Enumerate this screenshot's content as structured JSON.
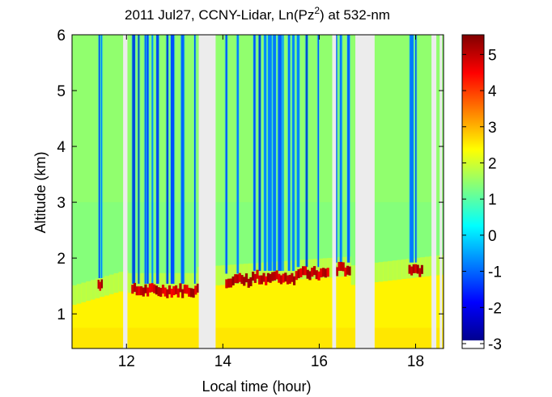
{
  "figure": {
    "title_main": "2011 Jul27, CCNY-Lidar, Ln(Pz",
    "title_sup": "2",
    "title_tail": ") at 532-nm"
  },
  "chart_data": {
    "type": "heatmap",
    "xlabel": "Local time (hour)",
    "ylabel": "Altitude (km)",
    "xlim": [
      10.87,
      18.58
    ],
    "ylim": [
      0.38,
      6.0
    ],
    "x_ticks": [
      12,
      14,
      16,
      18
    ],
    "y_ticks": [
      1,
      2,
      3,
      4,
      5,
      6
    ],
    "colorbar": {
      "range": [
        -3.0,
        5.5
      ],
      "ticks": [
        -3,
        -2,
        -1,
        0,
        1,
        2,
        3,
        4,
        5
      ],
      "colormap": "jet",
      "missing_color": "#ececec"
    },
    "data_gaps_hours": [
      [
        11.93,
        12.02
      ],
      [
        13.5,
        13.85
      ],
      [
        16.27,
        16.35
      ],
      [
        16.75,
        17.15
      ],
      [
        18.33,
        18.43
      ],
      [
        18.5,
        18.55
      ]
    ],
    "cloud_base_km": [
      {
        "start": 11.4,
        "end": 11.5,
        "height": 1.52
      },
      {
        "start": 12.1,
        "end": 13.5,
        "height": 1.42
      },
      {
        "start": 14.05,
        "end": 14.6,
        "height": 1.6
      },
      {
        "start": 14.6,
        "end": 15.5,
        "height": 1.65
      },
      {
        "start": 15.5,
        "end": 16.2,
        "height": 1.72
      },
      {
        "start": 16.3,
        "end": 16.65,
        "height": 1.8
      },
      {
        "start": 17.85,
        "end": 18.15,
        "height": 1.8
      }
    ],
    "background_values": {
      "boundary_layer": 2.4,
      "free_troposphere": 1.3,
      "above_cloud": -2.6,
      "cloud": 5.3
    }
  }
}
